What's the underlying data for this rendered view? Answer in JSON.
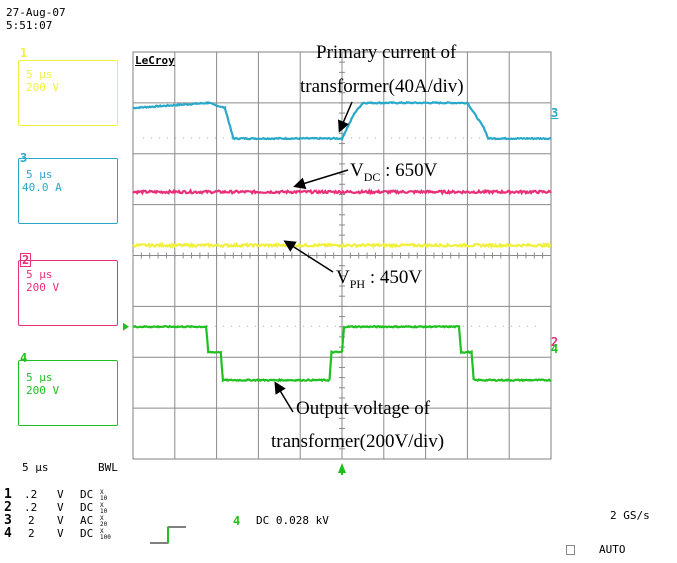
{
  "header": {
    "date": "27-Aug-07",
    "time": "5:51:07"
  },
  "brand": "LeCroy",
  "channels": [
    {
      "num": "1",
      "timebase": "5 μs",
      "scale": "200 V",
      "color": "#f0f040"
    },
    {
      "num": "3",
      "timebase": "5 μs",
      "scale": "40.0 A",
      "color": "#2aa8c8"
    },
    {
      "num": "2",
      "timebase": "5 μs",
      "scale": "200 V",
      "color": "#e8307a"
    },
    {
      "num": "4",
      "timebase": "5 μs",
      "scale": "200 V",
      "color": "#20c020"
    }
  ],
  "annotations": {
    "primary_line1": "Primary current of",
    "primary_line2": "transformer(40A/div)",
    "vdc_main": "V",
    "vdc_sub": "DC",
    "vdc_rest": " : 650V",
    "vph_main": "V",
    "vph_sub": "PH",
    "vph_rest": " : 450V",
    "output_line1": "Output voltage of",
    "output_line2": "transformer(200V/div)"
  },
  "bottom": {
    "timebase": "5 μs",
    "bwl": "BWL",
    "rows": [
      {
        "ch": "1",
        "scale": ".2",
        "unit": "V",
        "coupling": "DC",
        "probe": "X10"
      },
      {
        "ch": "2",
        "scale": ".2",
        "unit": "V",
        "coupling": "DC",
        "probe": "X10"
      },
      {
        "ch": "3",
        "scale": "2",
        "unit": "V",
        "coupling": "AC",
        "probe": "X20"
      },
      {
        "ch": "4",
        "scale": "2",
        "unit": "V",
        "coupling": "DC",
        "probe": "X100"
      }
    ],
    "trigger_channel": "4",
    "trigger_level": "DC 0.028 kV",
    "sample_rate": "2 GS/s",
    "trigger_mode": "AUTO"
  },
  "chart_data": {
    "type": "line",
    "x_unit": "div",
    "divisions": {
      "x": 10,
      "y": 8
    },
    "time_per_div": "5 μs",
    "series": [
      {
        "name": "Primary current of transformer(40A/div)",
        "channel": "3",
        "x": [
          0,
          1.8,
          2.2,
          2.4,
          5.0,
          5.3,
          5.5,
          8.0,
          8.4,
          8.5,
          10
        ],
        "y": [
          6.9,
          7.0,
          6.9,
          6.3,
          6.3,
          6.8,
          7.0,
          7.0,
          6.5,
          6.3,
          6.3
        ]
      },
      {
        "name": "VDC : 650V",
        "channel": "2",
        "x": [
          0,
          10
        ],
        "y": [
          5.25,
          5.25
        ]
      },
      {
        "name": "VPH : 450V",
        "channel": "1",
        "x": [
          0,
          10
        ],
        "y": [
          4.2,
          4.2
        ]
      },
      {
        "name": "Output voltage of transformer(200V/div)",
        "channel": "4",
        "x": [
          0,
          1.75,
          1.8,
          2.1,
          2.15,
          4.7,
          4.75,
          5.0,
          5.05,
          7.8,
          7.85,
          8.1,
          8.15,
          10
        ],
        "y": [
          2.6,
          2.6,
          2.1,
          2.1,
          1.55,
          1.55,
          2.1,
          2.1,
          2.6,
          2.6,
          2.1,
          2.1,
          1.55,
          1.55
        ]
      }
    ]
  }
}
